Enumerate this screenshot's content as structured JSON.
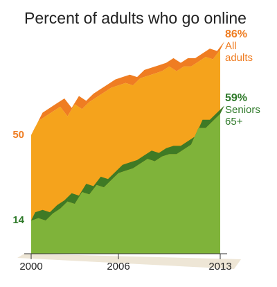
{
  "chart_data": {
    "type": "area",
    "title": "Percent of adults who go online",
    "x": [
      2000,
      2000.5,
      2001,
      2001.5,
      2002,
      2002.5,
      2003,
      2003.5,
      2004,
      2004.5,
      2005,
      2005.5,
      2006,
      2006.5,
      2007,
      2007.5,
      2008,
      2008.5,
      2009,
      2009.5,
      2010,
      2010.5,
      2011,
      2011.5,
      2012,
      2012.5,
      2013
    ],
    "series": [
      {
        "name": "All adults",
        "color": "#f5a31c",
        "ridge_color": "#ef7d22",
        "label_color": "#ef7d22",
        "values": [
          50,
          56,
          58,
          60,
          62,
          58,
          63,
          61,
          64,
          66,
          68,
          70,
          71,
          72,
          71,
          74,
          75,
          76,
          77,
          79,
          77,
          79,
          79,
          81,
          83,
          82,
          86
        ],
        "value_labels": [
          null,
          null,
          null,
          null,
          null,
          null,
          null,
          null,
          null,
          null,
          null,
          null,
          null,
          null,
          null,
          null,
          null,
          null,
          null,
          null,
          null,
          null,
          null,
          null,
          null,
          null,
          "86%"
        ]
      },
      {
        "name": "Seniors 65+",
        "color": "#7fb33a",
        "ridge_color": "#3f7a25",
        "label_color": "#2f7a2a",
        "values": [
          14,
          15,
          14,
          17,
          19,
          22,
          21,
          26,
          25,
          29,
          28,
          31,
          34,
          35,
          36,
          38,
          40,
          39,
          41,
          42,
          42,
          44,
          46,
          53,
          53,
          56,
          59
        ],
        "value_labels": [
          null,
          null,
          null,
          null,
          null,
          null,
          null,
          null,
          null,
          null,
          null,
          null,
          null,
          null,
          null,
          null,
          null,
          null,
          null,
          null,
          null,
          null,
          null,
          null,
          null,
          null,
          "59%"
        ]
      }
    ],
    "xlim": [
      2000,
      2013
    ],
    "xticks": [
      2000,
      2006,
      2013
    ],
    "ylim": [
      0,
      100
    ],
    "yticks": [
      14,
      50
    ]
  }
}
